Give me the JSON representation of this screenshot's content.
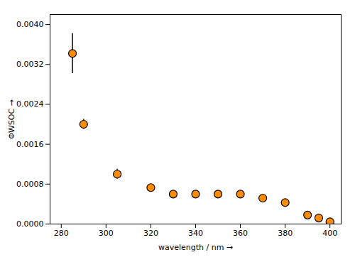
{
  "chart_data": {
    "type": "scatter",
    "xlabel": "wavelength / nm",
    "ylabel": "ΦWSOC",
    "x": [
      285,
      290,
      305,
      320,
      330,
      340,
      350,
      360,
      370,
      380,
      390,
      395,
      400
    ],
    "values": [
      0.00342,
      0.002,
      0.001,
      0.00073,
      0.0006,
      0.0006,
      0.0006,
      0.0006,
      0.00052,
      0.00043,
      0.00018,
      0.00012,
      4.5e-05
    ],
    "errors": [
      0.0004,
      0.0001,
      0.0001,
      4e-05,
      4e-05,
      4e-05,
      4e-05,
      4e-05,
      5e-05,
      5e-05,
      4e-05,
      4e-05,
      3e-05
    ],
    "color": "#FF8C00",
    "marker": "circle",
    "xlim": [
      275,
      405
    ],
    "ylim": [
      0.0,
      0.0042
    ],
    "xticks": [
      280,
      300,
      320,
      340,
      360,
      380,
      400
    ],
    "yticks": [
      {
        "value": 0.0,
        "label": "0.0000"
      },
      0.0008,
      0.0016,
      0.0024,
      0.0032,
      {
        "value": 0.004,
        "label": "0.0040"
      }
    ],
    "grid": false
  }
}
